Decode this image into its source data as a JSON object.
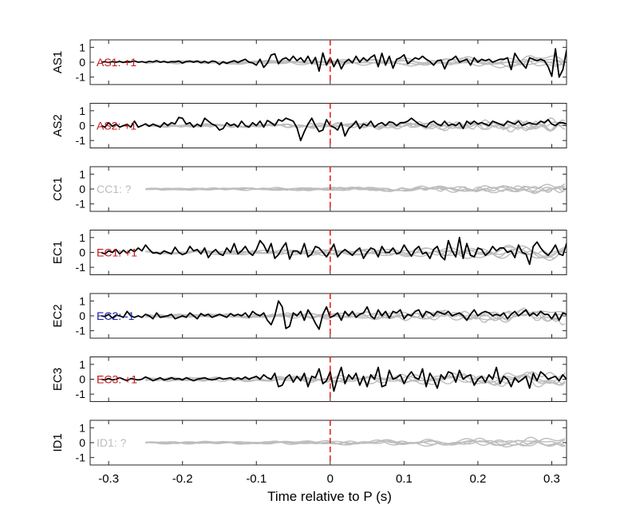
{
  "xlabel": "Time relative to P (s)",
  "colors": {
    "black": "#000000",
    "gray": "#bdbdbd",
    "red": "#c01818",
    "blue": "#1a1aa8",
    "marker": "#e8241c"
  },
  "chart_data": {
    "type": "line",
    "xlim": [
      -0.325,
      0.32
    ],
    "ylim": [
      -1.5,
      1.5
    ],
    "xticks": [
      -0.3,
      -0.2,
      -0.1,
      0,
      0.1,
      0.2,
      0.3
    ],
    "xtick_labels": [
      "-0.3",
      "-0.2",
      "-0.1",
      "0",
      "0.1",
      "0.2",
      "0.3"
    ],
    "yticks": [
      -1,
      0,
      1
    ],
    "ytick_labels": [
      "-1",
      "0",
      "1"
    ],
    "marker_x": 0,
    "panels": [
      {
        "ylabel": "AS1",
        "annotation": "AS1: +1",
        "annotation_color": "red",
        "series": [
          {
            "x0": -0.31,
            "dx": 0.01,
            "y": [
              0.0,
              0.03,
              -0.02,
              0.04,
              0.0,
              0.05,
              -0.02,
              0.06,
              0.02,
              0.08,
              0.0,
              0.04,
              -0.02,
              0.06,
              0.02,
              0.1,
              0.0,
              0.06,
              -0.02,
              0.04,
              0.02,
              0.08,
              -0.06,
              0.05,
              0.08,
              0.0,
              0.08,
              -0.04,
              0.06,
              -0.05,
              0.08,
              0.04,
              -0.15,
              0.03,
              -0.08,
              0.02,
              0.1,
              -0.02,
              0.1,
              0.2,
              0.0,
              -0.05,
              -0.2,
              0.2,
              -0.35,
              -0.06,
              0.48,
              0.56,
              -0.1,
              0.2,
              0.3,
              0.1,
              0.4,
              0.1,
              0.3,
              0.0,
              0.4,
              -0.1,
              0.32,
              -0.6,
              0.62,
              -0.2,
              0.3,
              -0.3,
              0.2,
              -0.45,
              0.0,
              0.2,
              -0.05,
              0.4,
              0.0,
              0.3,
              0.08,
              0.32,
              0.48,
              -0.3,
              0.6,
              -0.2,
              0.4,
              -0.4,
              0.2,
              0.3,
              0.5,
              -0.1,
              0.1,
              0.3,
              0.2,
              0.4,
              0.2,
              0.05,
              -0.2,
              0.1,
              0.15,
              -0.45,
              0.1,
              0.2,
              0.4,
              0.0,
              0.1,
              0.2,
              -0.2,
              0.3,
              0.0,
              0.2,
              0.1,
              0.2,
              0.0,
              0.1,
              0.2,
              0.2,
              0.3,
              -0.5,
              0.6,
              0.2,
              -0.1,
              -0.4,
              0.3,
              0.2,
              0.1,
              0.2,
              0.1,
              -0.3,
              -0.95,
              0.9,
              -1.0,
              -0.5,
              0.8,
              0.0,
              0.45,
              -0.2,
              0.2,
              0.4
            ]
          }
        ]
      },
      {
        "ylabel": "AS2",
        "annotation": "AS2: +1",
        "annotation_color": "red",
        "series": [
          {
            "x0": -0.31,
            "dx": 0.01,
            "y": [
              0.0,
              -0.1,
              0.2,
              -0.05,
              0.1,
              -0.1,
              0.0,
              0.08,
              -0.1,
              0.3,
              -0.1,
              0.0,
              0.12,
              -0.05,
              0.1,
              0.0,
              -0.1,
              0.2,
              0.0,
              0.2,
              0.12,
              0.55,
              0.5,
              0.1,
              0.2,
              -0.1,
              0.1,
              -0.05,
              0.5,
              0.3,
              0.1,
              0.0,
              -0.3,
              -0.2,
              0.2,
              0.0,
              0.1,
              -0.1,
              0.3,
              0.0,
              -0.1,
              0.2,
              0.0,
              0.3,
              -0.1,
              0.35,
              0.2,
              0.0,
              0.4,
              0.3,
              0.5,
              0.4,
              0.3,
              -0.15,
              -1.0,
              -0.4,
              0.1,
              0.5,
              0.0,
              -0.4,
              -0.3,
              0.4,
              0.0,
              -0.1,
              -0.3,
              0.2,
              -0.7,
              -0.2,
              0.0,
              0.3,
              -0.2,
              0.1,
              0.0,
              0.3,
              -0.1,
              0.1,
              0.2,
              0.0,
              0.25,
              0.2,
              0.0,
              0.2,
              0.2,
              0.3,
              0.5,
              0.3,
              0.1,
              0.0,
              -0.1,
              0.2,
              0.3,
              0.1,
              0.0,
              0.3,
              0.0,
              0.1,
              0.0,
              0.2,
              -0.2,
              0.3,
              0.1,
              0.3,
              0.1,
              0.2,
              0.1,
              0.0,
              0.3,
              0.2,
              0.1,
              0.0,
              0.3,
              0.2,
              0.1,
              0.3,
              0.0,
              0.1,
              0.2,
              0.1,
              0.1,
              0.3,
              0.2,
              0.4,
              0.1,
              0.0,
              0.2,
              0.2,
              0.1,
              0.3,
              0.0,
              0.2,
              0.1,
              0.3,
              0.3,
              0.3,
              -0.15
            ]
          }
        ]
      },
      {
        "ylabel": "CC1",
        "annotation": "CC1: ?",
        "annotation_color": "gray",
        "series": []
      },
      {
        "ylabel": "EC1",
        "annotation": "EC1: +1",
        "annotation_color": "red",
        "series": [
          {
            "x0": -0.31,
            "dx": 0.01,
            "y": [
              0.0,
              -0.1,
              0.1,
              0.0,
              0.2,
              -0.1,
              0.15,
              -0.05,
              0.2,
              0.05,
              0.3,
              0.1,
              0.5,
              0.2,
              -0.05,
              0.0,
              -0.1,
              0.1,
              0.0,
              -0.1,
              0.35,
              0.0,
              -0.15,
              -0.05,
              0.4,
              0.1,
              0.2,
              -0.1,
              0.3,
              -0.35,
              0.0,
              0.2,
              -0.1,
              -0.2,
              0.3,
              0.0,
              0.6,
              -0.1,
              0.1,
              0.4,
              0.0,
              -0.2,
              0.2,
              0.8,
              0.5,
              0.0,
              0.6,
              -0.4,
              -0.15,
              0.3,
              0.65,
              -0.45,
              0.1,
              0.1,
              -0.1,
              0.6,
              -0.3,
              -0.1,
              0.4,
              0.3,
              0.0,
              -0.3,
              0.1,
              0.55,
              -0.3,
              0.0,
              0.2,
              0.0,
              -0.2,
              0.1,
              0.3,
              -0.4,
              0.0,
              0.3,
              0.2,
              -0.3,
              0.4,
              0.0,
              0.0,
              0.3,
              -0.1,
              0.0,
              0.5,
              0.1,
              -0.25,
              0.2,
              0.4,
              -0.1,
              0.0,
              -0.4,
              0.2,
              0.4,
              -0.25,
              -0.5,
              0.8,
              0.1,
              -0.3,
              1.0,
              -0.4,
              0.6,
              -0.2,
              -0.3,
              0.3,
              0.2,
              -0.2,
              0.0,
              0.4,
              0.1,
              0.3,
              0.3,
              0.0,
              0.1,
              -0.35,
              0.5,
              0.0,
              -0.1,
              -0.8,
              0.4,
              0.7,
              0.3,
              0.0,
              -0.2,
              0.1,
              0.5,
              -0.1,
              -0.2,
              0.6,
              0.0,
              0.2,
              -0.4,
              0.3,
              0.3,
              -0.4,
              0.3
            ]
          }
        ]
      },
      {
        "ylabel": "EC2",
        "annotation": "EC2: -1",
        "annotation_color": "blue",
        "series": [
          {
            "x0": -0.31,
            "dx": 0.01,
            "y": [
              0.0,
              -0.05,
              0.1,
              -0.15,
              0.05,
              0.0,
              -0.1,
              0.3,
              0.0,
              -0.1,
              0.0,
              -0.1,
              0.1,
              0.0,
              -0.2,
              0.2,
              -0.1,
              -0.05,
              0.0,
              0.1,
              -0.2,
              -0.1,
              0.0,
              -0.1,
              0.2,
              0.0,
              -0.2,
              0.15,
              0.0,
              0.1,
              -0.1,
              0.0,
              0.1,
              0.0,
              -0.1,
              0.15,
              0.0,
              0.1,
              0.0,
              0.2,
              -0.1,
              0.3,
              0.1,
              0.0,
              0.2,
              -0.3,
              -0.6,
              0.0,
              1.0,
              0.6,
              -0.85,
              -0.7,
              0.2,
              0.0,
              0.3,
              -0.3,
              0.4,
              0.0,
              -0.5,
              -0.9,
              0.1,
              0.6,
              -0.1,
              0.0,
              0.2,
              -0.3,
              0.3,
              0.0,
              0.3,
              -0.1,
              0.1,
              0.2,
              0.6,
              0.0,
              -0.2,
              0.4,
              0.0,
              0.3,
              -0.15,
              0.3,
              0.2,
              0.4,
              -0.2,
              0.1,
              0.0,
              0.3,
              0.4,
              -0.1,
              0.3,
              0.2,
              0.0,
              0.3,
              0.2,
              0.1,
              0.3,
              0.0,
              0.1,
              0.2,
              0.0,
              -0.3,
              0.1,
              0.4,
              0.0,
              0.2,
              0.3,
              0.2,
              0.0,
              0.1,
              0.0,
              0.2,
              -0.2,
              0.1,
              0.3,
              0.0,
              0.2,
              0.4,
              0.0,
              0.2,
              0.0,
              0.3,
              0.1,
              0.1,
              -0.2,
              0.2,
              -0.3,
              0.2,
              0.1,
              0.0,
              0.3,
              0.3,
              0.1,
              0.2,
              -0.5,
              0.1,
              0.2,
              0.3,
              -0.6
            ]
          }
        ]
      },
      {
        "ylabel": "EC3",
        "annotation": "EC3: +1",
        "annotation_color": "red",
        "series": [
          {
            "x0": -0.31,
            "dx": 0.01,
            "y": [
              0.0,
              -0.05,
              0.05,
              -0.05,
              0.0,
              0.1,
              0.0,
              -0.1,
              0.05,
              0.0,
              -0.05,
              0.0,
              0.15,
              0.05,
              -0.1,
              0.0,
              0.1,
              -0.05,
              0.0,
              0.1,
              0.0,
              0.05,
              -0.05,
              0.1,
              0.0,
              -0.1,
              0.0,
              0.05,
              0.1,
              0.0,
              -0.05,
              0.0,
              0.1,
              0.0,
              0.05,
              0.1,
              -0.05,
              0.1,
              0.0,
              0.15,
              0.0,
              0.1,
              0.2,
              0.0,
              0.3,
              0.1,
              0.0,
              0.4,
              -0.5,
              -0.4,
              0.1,
              0.3,
              -0.2,
              0.2,
              -0.1,
              0.4,
              -0.5,
              0.2,
              0.1,
              0.7,
              -0.3,
              -0.1,
              0.5,
              -0.8,
              0.1,
              0.8,
              -0.3,
              0.3,
              0.0,
              0.4,
              -0.4,
              0.2,
              -0.5,
              0.3,
              0.0,
              0.8,
              -0.5,
              -0.4,
              0.6,
              0.0,
              0.1,
              0.3,
              -0.3,
              0.2,
              0.5,
              0.1,
              0.0,
              0.7,
              -0.5,
              0.4,
              0.0,
              -0.6,
              0.3,
              0.0,
              0.5,
              0.4,
              -0.2,
              0.6,
              0.0,
              0.2,
              0.3,
              -0.4,
              0.0,
              0.2,
              -0.2,
              0.3,
              0.0,
              0.8,
              -0.3,
              0.2,
              0.0,
              -0.5,
              0.1,
              -0.2,
              0.0,
              0.2,
              -0.6,
              0.4,
              -0.1,
              0.5,
              0.3,
              0.0,
              0.1,
              0.2,
              -0.1,
              0.3,
              0.0,
              0.2,
              -0.3,
              0.0,
              0.3,
              0.2,
              -0.4,
              0.1,
              0.0
            ]
          }
        ]
      },
      {
        "ylabel": "ID1",
        "annotation": "ID1: ?",
        "annotation_color": "gray",
        "series": []
      }
    ]
  }
}
